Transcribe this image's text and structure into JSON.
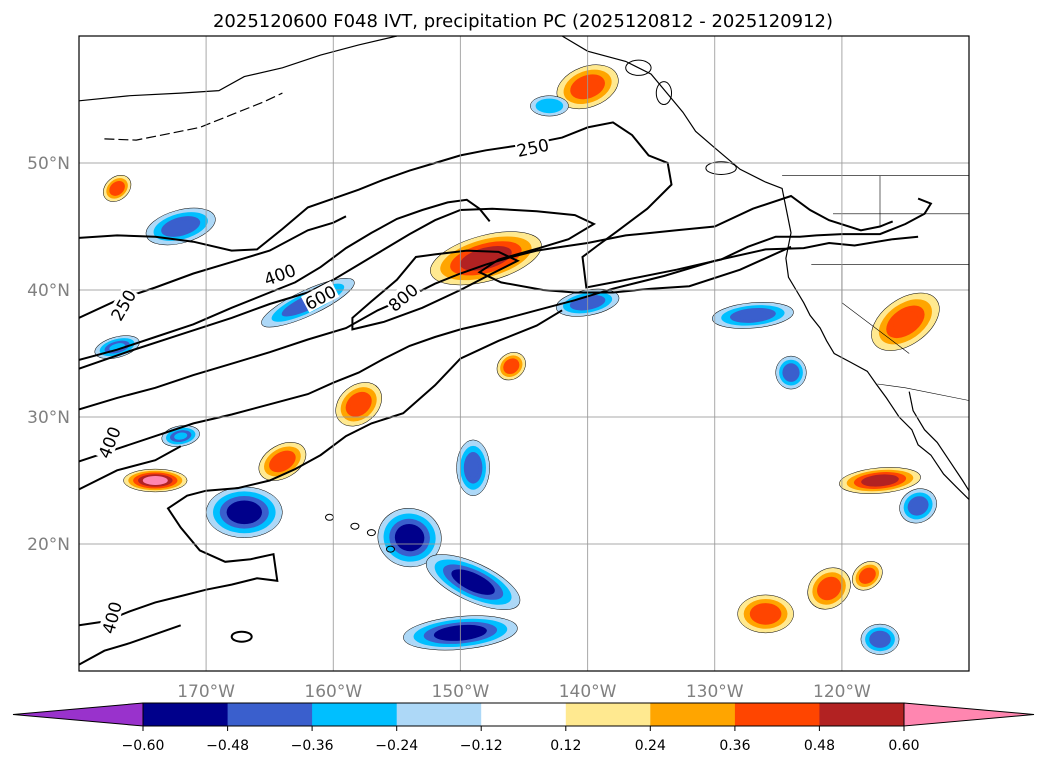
{
  "chart_data": {
    "type": "contour-map",
    "title": "2025120600 F048 IVT, precipitation PC (2025120812 - 2025120912)",
    "extent": {
      "lon_min": 180,
      "lon_max": 250,
      "lat_min": 10,
      "lat_max": 60
    },
    "lat_lines": [
      20,
      30,
      40,
      50
    ],
    "lon_lines": [
      190,
      200,
      210,
      220,
      230,
      240
    ],
    "lat_labels": [
      "20°N",
      "30°N",
      "40°N",
      "50°N"
    ],
    "lon_labels": [
      "170°W",
      "160°W",
      "150°W",
      "140°W",
      "130°W",
      "120°W"
    ],
    "ivt_contour_levels": [
      250,
      400,
      600,
      800
    ],
    "ivt_contour_labels": [
      {
        "text": "250",
        "lon": 215.7,
        "lat": 51.2,
        "angle": -12
      },
      {
        "text": "250",
        "lon": 183.5,
        "lat": 38.8,
        "angle": -60
      },
      {
        "text": "400",
        "lon": 195.8,
        "lat": 41.2,
        "angle": -20
      },
      {
        "text": "600",
        "lon": 199.0,
        "lat": 39.4,
        "angle": -28
      },
      {
        "text": "800",
        "lon": 205.5,
        "lat": 39.4,
        "angle": -40
      },
      {
        "text": "400",
        "lon": 182.4,
        "lat": 28.0,
        "angle": -68
      },
      {
        "text": "400",
        "lon": 182.6,
        "lat": 14.2,
        "angle": -75
      }
    ],
    "colorbar": {
      "levels": [
        -0.6,
        -0.48,
        -0.36,
        -0.24,
        -0.12,
        0.12,
        0.24,
        0.36,
        0.48,
        0.6
      ],
      "tick_labels": [
        "−0.60",
        "−0.48",
        "−0.36",
        "−0.24",
        "−0.12",
        "0.12",
        "0.24",
        "0.36",
        "0.48",
        "0.60"
      ],
      "colors": [
        "#9932cc",
        "#00008b",
        "#3a5fcd",
        "#00bfff",
        "#add8f7",
        "#ffffff",
        "#ffe990",
        "#ffa500",
        "#ff4500",
        "#b22222",
        "#ff86b0"
      ],
      "extend": "both",
      "orientation": "horizontal"
    },
    "precip_features": [
      {
        "lon": 212,
        "lat": 42.5,
        "rx": 4.5,
        "ry": 1.8,
        "rot": -15,
        "value": 0.55
      },
      {
        "lon": 202,
        "lat": 31.0,
        "rx": 2.0,
        "ry": 1.5,
        "rot": -40,
        "value": 0.4
      },
      {
        "lon": 186,
        "lat": 25.0,
        "rx": 2.5,
        "ry": 0.9,
        "rot": 0,
        "value": 0.6
      },
      {
        "lon": 196,
        "lat": 26.5,
        "rx": 2.0,
        "ry": 1.3,
        "rot": -30,
        "value": 0.4
      },
      {
        "lon": 220,
        "lat": 56.0,
        "rx": 2.5,
        "ry": 1.6,
        "rot": -20,
        "value": 0.45
      },
      {
        "lon": 245,
        "lat": 37.5,
        "rx": 3.0,
        "ry": 1.8,
        "rot": -35,
        "value": 0.45
      },
      {
        "lon": 243,
        "lat": 25.0,
        "rx": 3.2,
        "ry": 1.0,
        "rot": -5,
        "value": 0.5
      },
      {
        "lon": 239,
        "lat": 16.5,
        "rx": 1.8,
        "ry": 1.5,
        "rot": -40,
        "value": 0.4
      },
      {
        "lon": 234,
        "lat": 14.5,
        "rx": 2.2,
        "ry": 1.5,
        "rot": 0,
        "value": 0.36
      },
      {
        "lon": 242,
        "lat": 17.5,
        "rx": 1.3,
        "ry": 1.0,
        "rot": -40,
        "value": 0.36
      },
      {
        "lon": 214,
        "lat": 34.0,
        "rx": 1.2,
        "ry": 1.0,
        "rot": -40,
        "value": 0.36
      },
      {
        "lon": 183,
        "lat": 48.0,
        "rx": 1.2,
        "ry": 0.9,
        "rot": -40,
        "value": 0.36
      },
      {
        "lon": 220,
        "lat": 39.0,
        "rx": 2.5,
        "ry": 1.0,
        "rot": -10,
        "value": -0.45
      },
      {
        "lon": 233,
        "lat": 38.0,
        "rx": 3.2,
        "ry": 1.0,
        "rot": -5,
        "value": -0.45
      },
      {
        "lon": 193,
        "lat": 22.5,
        "rx": 3.0,
        "ry": 2.0,
        "rot": 0,
        "value": -0.5
      },
      {
        "lon": 206,
        "lat": 20.5,
        "rx": 2.5,
        "ry": 2.3,
        "rot": 10,
        "value": -0.55
      },
      {
        "lon": 211,
        "lat": 17.0,
        "rx": 4.0,
        "ry": 1.5,
        "rot": 25,
        "value": -0.55
      },
      {
        "lon": 211,
        "lat": 26.0,
        "rx": 1.3,
        "ry": 2.2,
        "rot": 0,
        "value": -0.4
      },
      {
        "lon": 210,
        "lat": 13.0,
        "rx": 4.5,
        "ry": 1.3,
        "rot": -5,
        "value": -0.5
      },
      {
        "lon": 198,
        "lat": 39.0,
        "rx": 4.0,
        "ry": 1.0,
        "rot": -25,
        "value": -0.4
      },
      {
        "lon": 188,
        "lat": 45.0,
        "rx": 2.8,
        "ry": 1.3,
        "rot": -15,
        "value": -0.45
      },
      {
        "lon": 183,
        "lat": 35.5,
        "rx": 1.8,
        "ry": 0.8,
        "rot": -15,
        "value": -0.36
      },
      {
        "lon": 217,
        "lat": 54.5,
        "rx": 1.5,
        "ry": 0.8,
        "rot": 0,
        "value": -0.3
      },
      {
        "lon": 246,
        "lat": 23.0,
        "rx": 1.5,
        "ry": 1.3,
        "rot": -30,
        "value": -0.45
      },
      {
        "lon": 243,
        "lat": 12.5,
        "rx": 1.5,
        "ry": 1.2,
        "rot": 0,
        "value": -0.4
      },
      {
        "lon": 188,
        "lat": 28.5,
        "rx": 1.5,
        "ry": 0.8,
        "rot": -10,
        "value": -0.36
      },
      {
        "lon": 236,
        "lat": 33.5,
        "rx": 1.2,
        "ry": 1.3,
        "rot": 0,
        "value": -0.4
      }
    ]
  }
}
